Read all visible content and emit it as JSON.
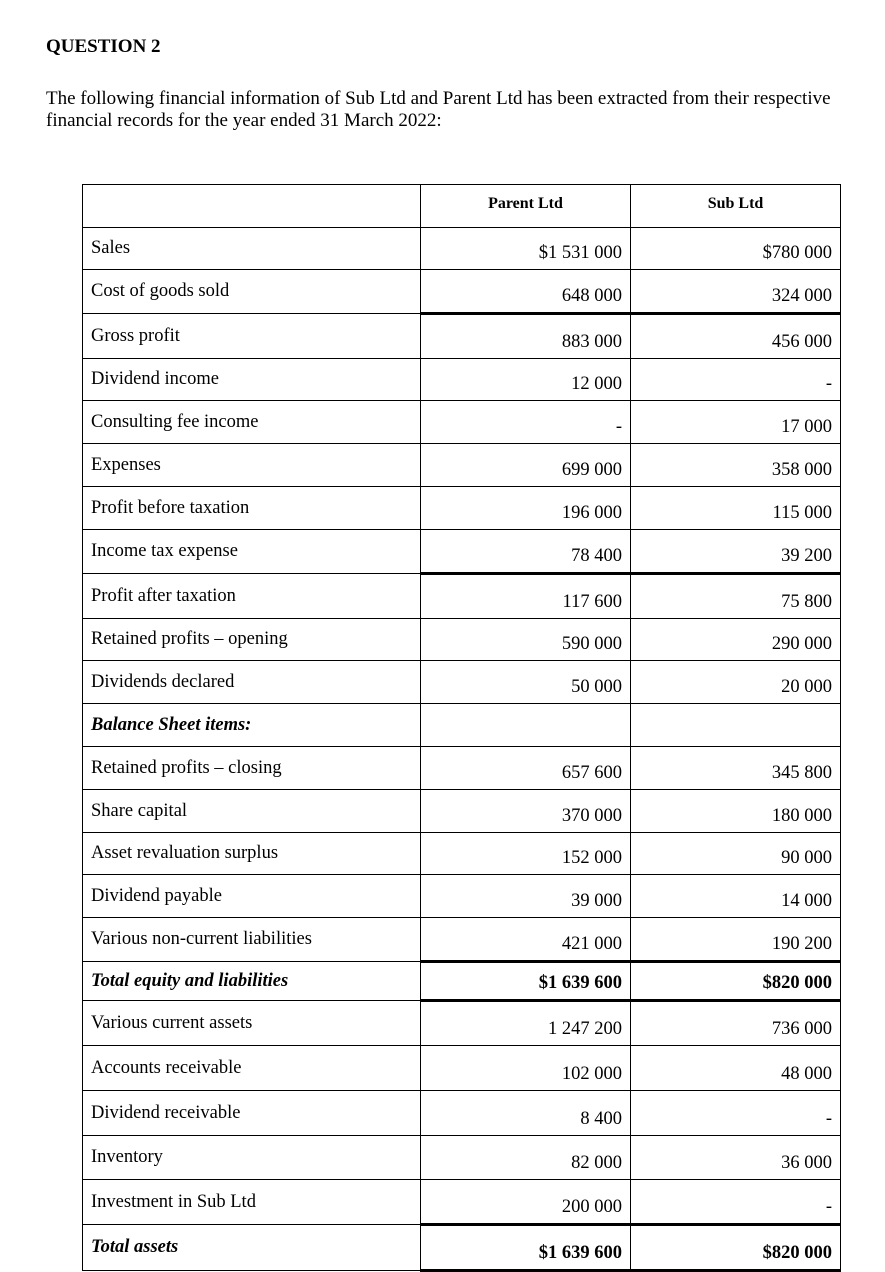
{
  "title": "QUESTION 2",
  "intro": "The following financial information of Sub Ltd and Parent Ltd has been extracted from their respective financial records for the year ended 31 March 2022:",
  "table": {
    "headers": [
      "",
      "Parent Ltd",
      "Sub Ltd"
    ],
    "rows": [
      {
        "label": "Sales",
        "parent": "$1 531 000",
        "sub": "$780 000"
      },
      {
        "label": "Cost of goods sold",
        "parent": "648 000",
        "sub": "324 000"
      },
      {
        "label": "Gross profit",
        "parent": "883 000",
        "sub": "456 000"
      },
      {
        "label": "Dividend income",
        "parent": "12 000",
        "sub": "-"
      },
      {
        "label": "Consulting fee income",
        "parent": "-",
        "sub": "17 000"
      },
      {
        "label": "Expenses",
        "parent": "699 000",
        "sub": "358 000"
      },
      {
        "label": "Profit before taxation",
        "parent": "196 000",
        "sub": "115 000"
      },
      {
        "label": "Income tax expense",
        "parent": "78 400",
        "sub": "39 200"
      },
      {
        "label": "Profit after taxation",
        "parent": "117 600",
        "sub": "75 800"
      },
      {
        "label": "Retained profits – opening",
        "parent": "590 000",
        "sub": "290 000"
      },
      {
        "label": "Dividends declared",
        "parent": "50 000",
        "sub": "20 000"
      },
      {
        "label": "Balance Sheet items:",
        "parent": "",
        "sub": ""
      },
      {
        "label": "Retained profits – closing",
        "parent": "657 600",
        "sub": "345 800"
      },
      {
        "label": "Share capital",
        "parent": "370 000",
        "sub": "180 000"
      },
      {
        "label": "Asset revaluation surplus",
        "parent": "152 000",
        "sub": "90 000"
      },
      {
        "label": "Dividend payable",
        "parent": "39 000",
        "sub": "14 000"
      },
      {
        "label": "Various non-current liabilities",
        "parent": "421 000",
        "sub": "190 200"
      },
      {
        "label": "Total equity and liabilities",
        "parent": "$1 639 600",
        "sub": "$820 000"
      },
      {
        "label": "Various current assets",
        "parent": "1 247 200",
        "sub": "736 000"
      },
      {
        "label": "Accounts receivable",
        "parent": "102 000",
        "sub": "48 000"
      },
      {
        "label": "Dividend receivable",
        "parent": "8 400",
        "sub": "-"
      },
      {
        "label": "Inventory",
        "parent": "82 000",
        "sub": "36 000"
      },
      {
        "label": "Investment in Sub Ltd",
        "parent": "200 000",
        "sub": "-"
      },
      {
        "label": "Total assets",
        "parent": "$1 639 600",
        "sub": "$820 000"
      }
    ]
  }
}
